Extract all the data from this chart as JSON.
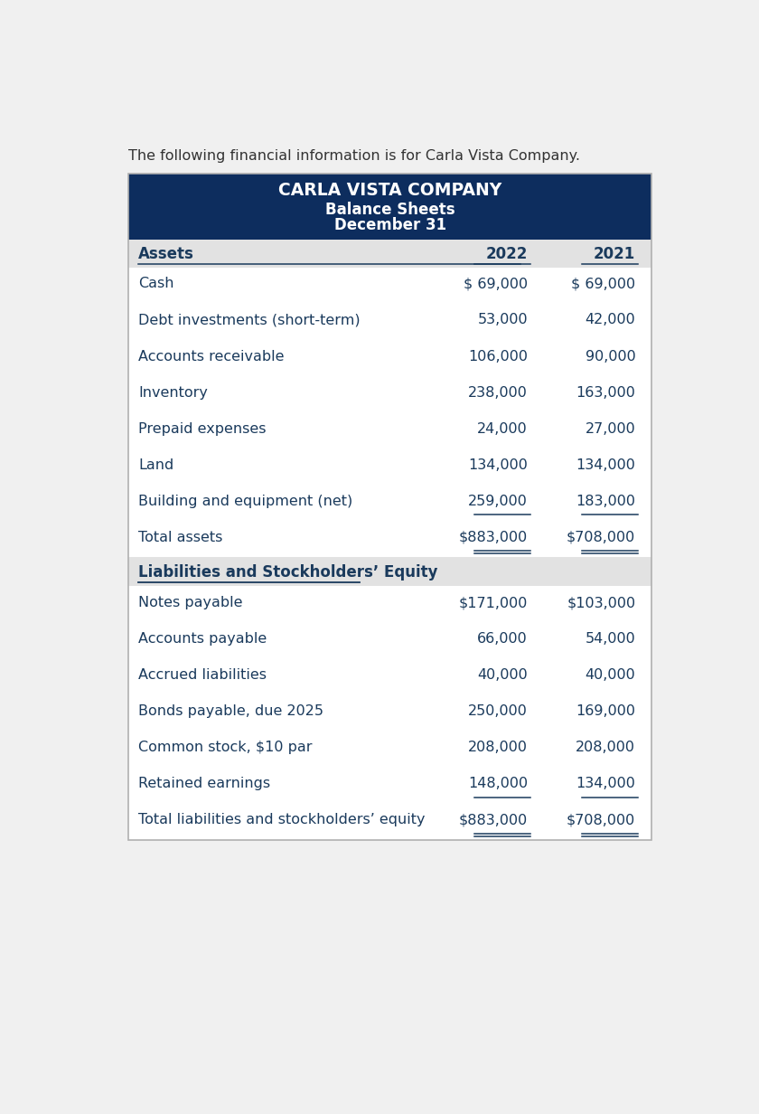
{
  "intro_text": "The following financial information is for Carla Vista Company.",
  "header_line1": "CARLA VISTA COMPANY",
  "header_line2": "Balance Sheets",
  "header_line3": "December 31",
  "header_bg": "#0d2d5e",
  "header_text_color": "#ffffff",
  "col_headers": [
    "Assets",
    "2022",
    "2021"
  ],
  "assets_rows": [
    {
      "label": "Cash",
      "v2022": "$ 69,000",
      "v2021": "$ 69,000",
      "ul22": false,
      "ul21": false,
      "dbl": false
    },
    {
      "label": "Debt investments (short-term)",
      "v2022": "53,000",
      "v2021": "42,000",
      "ul22": false,
      "ul21": false,
      "dbl": false
    },
    {
      "label": "Accounts receivable",
      "v2022": "106,000",
      "v2021": "90,000",
      "ul22": false,
      "ul21": false,
      "dbl": false
    },
    {
      "label": "Inventory",
      "v2022": "238,000",
      "v2021": "163,000",
      "ul22": false,
      "ul21": false,
      "dbl": false
    },
    {
      "label": "Prepaid expenses",
      "v2022": "24,000",
      "v2021": "27,000",
      "ul22": false,
      "ul21": false,
      "dbl": false
    },
    {
      "label": "Land",
      "v2022": "134,000",
      "v2021": "134,000",
      "ul22": false,
      "ul21": false,
      "dbl": false
    },
    {
      "label": "Building and equipment (net)",
      "v2022": "259,000",
      "v2021": "183,000",
      "ul22": true,
      "ul21": true,
      "dbl": false
    },
    {
      "label": "Total assets",
      "v2022": "$883,000",
      "v2021": "$708,000",
      "ul22": true,
      "ul21": true,
      "dbl": true
    }
  ],
  "liab_header": "Liabilities and Stockholders’ Equity",
  "liab_rows": [
    {
      "label": "Notes payable",
      "v2022": "$171,000",
      "v2021": "$103,000",
      "ul22": false,
      "ul21": false,
      "dbl": false
    },
    {
      "label": "Accounts payable",
      "v2022": "66,000",
      "v2021": "54,000",
      "ul22": false,
      "ul21": false,
      "dbl": false
    },
    {
      "label": "Accrued liabilities",
      "v2022": "40,000",
      "v2021": "40,000",
      "ul22": false,
      "ul21": false,
      "dbl": false
    },
    {
      "label": "Bonds payable, due 2025",
      "v2022": "250,000",
      "v2021": "169,000",
      "ul22": false,
      "ul21": false,
      "dbl": false
    },
    {
      "label": "Common stock, $10 par",
      "v2022": "208,000",
      "v2021": "208,000",
      "ul22": false,
      "ul21": false,
      "dbl": false
    },
    {
      "label": "Retained earnings",
      "v2022": "148,000",
      "v2021": "134,000",
      "ul22": true,
      "ul21": true,
      "dbl": false
    },
    {
      "label": "Total liabilities and stockholders’ equity",
      "v2022": "$883,000",
      "v2021": "$708,000",
      "ul22": true,
      "ul21": true,
      "dbl": true
    }
  ],
  "page_bg": "#f0f0f0",
  "table_border_color": "#b0b0b0",
  "header_bg_color": "#e2e2e2",
  "white_row_bg": "#ffffff",
  "text_color": "#1a3a5c",
  "dark_header_bg": "#0d2d5e",
  "dark_header_fg": "#ffffff"
}
